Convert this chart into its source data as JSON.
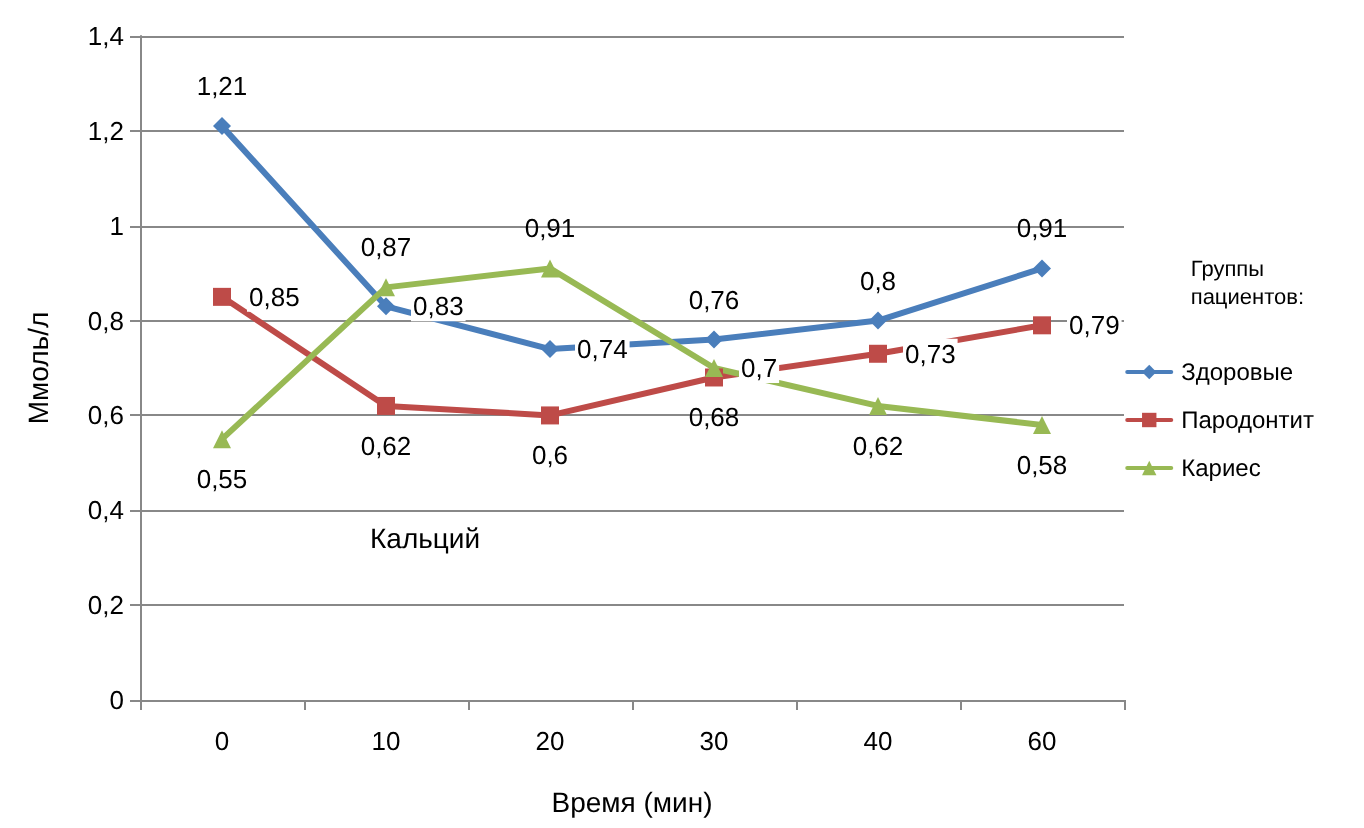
{
  "chart_data": {
    "type": "line",
    "xlabel": "Время (мин)",
    "ylabel": "Ммоль/л",
    "legend_title": "Группы пациентов:",
    "annotations": [
      "Кальций"
    ],
    "categories": [
      "0",
      "10",
      "20",
      "30",
      "40",
      "60"
    ],
    "ylim": [
      0,
      1.4
    ],
    "yticks": [
      0,
      {
        "value": 0.2,
        "label": "0,2"
      },
      {
        "value": 0.4,
        "label": "0,4"
      },
      {
        "value": 0.6,
        "label": "0,6"
      },
      {
        "value": 0.8,
        "label": "0,8"
      },
      1,
      {
        "value": 1.2,
        "label": "1,2"
      },
      {
        "value": 1.4,
        "label": "1,4"
      }
    ],
    "grid": "y",
    "legend": "right",
    "series": [
      {
        "name": "Здоровые",
        "color": "#4a7ebb",
        "marker": "diamond",
        "values": [
          1.21,
          0.83,
          0.74,
          0.76,
          0.8,
          0.91
        ],
        "value_labels": [
          "1,21",
          "0,83",
          "0,74",
          "0,76",
          "0,8",
          "0,91"
        ]
      },
      {
        "name": "Пародонтит",
        "color": "#be4b48",
        "marker": "square",
        "values": [
          0.85,
          0.62,
          0.6,
          0.68,
          0.73,
          0.79
        ],
        "value_labels": [
          "0,85",
          "0,62",
          "0,6",
          "0,68",
          "0,73",
          "0,79"
        ]
      },
      {
        "name": "Кариес",
        "color": "#98b954",
        "marker": "triangle",
        "values": [
          0.55,
          0.87,
          0.91,
          0.7,
          0.62,
          0.58
        ],
        "value_labels": [
          "0,55",
          "0,87",
          "0,91",
          "0,7",
          "0,62",
          "0,58"
        ]
      }
    ]
  }
}
